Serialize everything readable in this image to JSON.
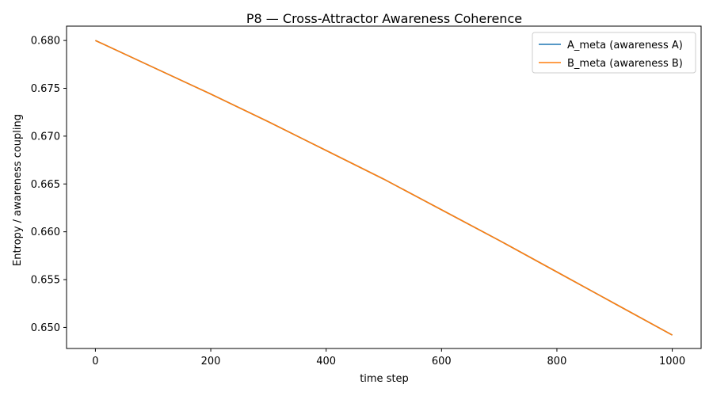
{
  "chart_data": {
    "type": "line",
    "title": "P8 — Cross-Attractor Awareness Coherence",
    "xlabel": "time step",
    "ylabel": "Entropy / awareness coupling",
    "xlim": [
      -50,
      1050
    ],
    "ylim": [
      0.6478,
      0.6815
    ],
    "x_ticks": [
      0,
      200,
      400,
      600,
      800,
      1000
    ],
    "y_ticks": [
      0.65,
      0.655,
      0.66,
      0.665,
      0.67,
      0.675,
      0.68
    ],
    "y_tick_labels": [
      "0.650",
      "0.655",
      "0.660",
      "0.665",
      "0.670",
      "0.675",
      "0.680"
    ],
    "grid": false,
    "legend_position": "top-right",
    "series": [
      {
        "name": "A_meta (awareness A)",
        "color": "#1f77b4",
        "x": [
          0,
          100,
          200,
          300,
          400,
          500,
          600,
          700,
          800,
          900,
          1000
        ],
        "y": [
          0.68,
          0.6772,
          0.6744,
          0.6715,
          0.6685,
          0.6655,
          0.6623,
          0.6591,
          0.6558,
          0.6525,
          0.6492
        ]
      },
      {
        "name": "B_meta (awareness B)",
        "color": "#ff7f0e",
        "x": [
          0,
          100,
          200,
          300,
          400,
          500,
          600,
          700,
          800,
          900,
          1000
        ],
        "y": [
          0.68,
          0.6772,
          0.6744,
          0.6715,
          0.6685,
          0.6655,
          0.6623,
          0.6591,
          0.6558,
          0.6525,
          0.6492
        ]
      }
    ]
  }
}
